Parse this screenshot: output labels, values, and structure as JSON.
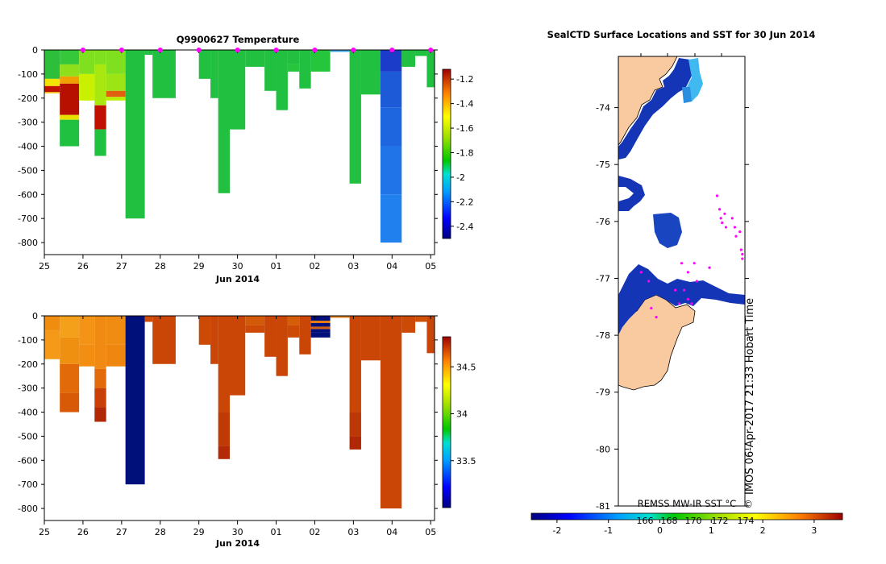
{
  "chart_data": [
    {
      "type": "heatmap",
      "title": "Q9900627  Temperature",
      "xlabel": "Jun 2014",
      "xticks": [
        "25",
        "26",
        "27",
        "28",
        "29",
        "30",
        "01",
        "02",
        "03",
        "04",
        "05"
      ],
      "xlim": [
        25,
        35.1
      ],
      "yticks": [
        "0",
        "-100",
        "-200",
        "-300",
        "-400",
        "-500",
        "-600",
        "-700",
        "-800"
      ],
      "ylim": [
        -850,
        0
      ],
      "colorbar": {
        "ticks": [
          "-1.2",
          "-1.4",
          "-1.6",
          "-1.8",
          "-2",
          "-2.2",
          "-2.4"
        ],
        "range": [
          -2.5,
          -1.12
        ]
      },
      "profiles": [
        {
          "t0": 25.0,
          "t1": 25.4,
          "depth": 180,
          "cells": [
            [
              0,
              120,
              "#2dbf3c"
            ],
            [
              120,
              150,
              "#f2e400"
            ],
            [
              150,
              175,
              "#c01000"
            ],
            [
              175,
              180,
              "#f2c800"
            ]
          ]
        },
        {
          "t0": 25.4,
          "t1": 25.9,
          "depth": 400,
          "cells": [
            [
              0,
              60,
              "#35c83a"
            ],
            [
              60,
              110,
              "#8fe01a"
            ],
            [
              110,
              140,
              "#f0a000"
            ],
            [
              140,
              270,
              "#b81000"
            ],
            [
              270,
              290,
              "#e8e000"
            ],
            [
              290,
              400,
              "#20c040"
            ]
          ]
        },
        {
          "t0": 25.9,
          "t1": 26.3,
          "depth": 210,
          "cells": [
            [
              0,
              100,
              "#7fe020"
            ],
            [
              100,
              210,
              "#c8f000"
            ]
          ]
        },
        {
          "t0": 26.3,
          "t1": 26.6,
          "depth": 440,
          "cells": [
            [
              0,
              60,
              "#7fe020"
            ],
            [
              60,
              230,
              "#a8e810"
            ],
            [
              230,
              330,
              "#c01000"
            ],
            [
              330,
              440,
              "#20c040"
            ]
          ]
        },
        {
          "t0": 26.6,
          "t1": 27.1,
          "depth": 210,
          "cells": [
            [
              0,
              100,
              "#7fe020"
            ],
            [
              100,
              170,
              "#9ce414"
            ],
            [
              170,
              195,
              "#e06010"
            ],
            [
              195,
              210,
              "#b8f000"
            ]
          ]
        },
        {
          "t0": 27.1,
          "t1": 27.6,
          "depth": 700,
          "cells": [
            [
              0,
              700,
              "#22c040"
            ]
          ]
        },
        {
          "t0": 27.6,
          "t1": 27.8,
          "depth": 20,
          "cells": [
            [
              0,
              20,
              "#22c040"
            ]
          ]
        },
        {
          "t0": 27.8,
          "t1": 28.4,
          "depth": 200,
          "cells": [
            [
              0,
              200,
              "#22c040"
            ]
          ]
        },
        {
          "t0": 29.0,
          "t1": 29.3,
          "depth": 120,
          "cells": [
            [
              0,
              120,
              "#22c040"
            ]
          ]
        },
        {
          "t0": 29.3,
          "t1": 29.5,
          "depth": 200,
          "cells": [
            [
              0,
              200,
              "#22c040"
            ]
          ]
        },
        {
          "t0": 29.5,
          "t1": 29.8,
          "depth": 595,
          "cells": [
            [
              0,
              595,
              "#22c040"
            ]
          ]
        },
        {
          "t0": 29.8,
          "t1": 30.2,
          "depth": 330,
          "cells": [
            [
              0,
              330,
              "#22c040"
            ]
          ]
        },
        {
          "t0": 30.2,
          "t1": 30.7,
          "depth": 70,
          "cells": [
            [
              0,
              70,
              "#22c040"
            ]
          ]
        },
        {
          "t0": 30.7,
          "t1": 31.0,
          "depth": 170,
          "cells": [
            [
              0,
              170,
              "#22c040"
            ]
          ]
        },
        {
          "t0": 31.0,
          "t1": 31.3,
          "depth": 250,
          "cells": [
            [
              0,
              250,
              "#22c040"
            ]
          ]
        },
        {
          "t0": 31.3,
          "t1": 31.6,
          "depth": 90,
          "cells": [
            [
              0,
              60,
              "#22c040"
            ],
            [
              60,
              90,
              "#26c63c"
            ]
          ]
        },
        {
          "t0": 31.6,
          "t1": 31.9,
          "depth": 160,
          "cells": [
            [
              0,
              160,
              "#22c040"
            ]
          ]
        },
        {
          "t0": 31.9,
          "t1": 32.4,
          "depth": 90,
          "cells": [
            [
              0,
              90,
              "#26c63c"
            ]
          ]
        },
        {
          "t0": 32.4,
          "t1": 32.9,
          "depth": 8,
          "cells": [
            [
              0,
              8,
              "#3aa8e8"
            ]
          ]
        },
        {
          "t0": 32.9,
          "t1": 33.2,
          "depth": 555,
          "cells": [
            [
              0,
              555,
              "#22c040"
            ]
          ]
        },
        {
          "t0": 33.2,
          "t1": 33.7,
          "depth": 185,
          "cells": [
            [
              0,
              185,
              "#22c040"
            ]
          ]
        },
        {
          "t0": 33.7,
          "t1": 34.25,
          "depth": 800,
          "cells": [
            [
              0,
              90,
              "#1a3cc8"
            ],
            [
              90,
              240,
              "#1c5ad8"
            ],
            [
              240,
              400,
              "#1e66e0"
            ],
            [
              400,
              600,
              "#2074e8"
            ],
            [
              600,
              800,
              "#2080ee"
            ]
          ]
        },
        {
          "t0": 34.25,
          "t1": 34.6,
          "depth": 70,
          "cells": [
            [
              0,
              70,
              "#22c040"
            ]
          ]
        },
        {
          "t0": 34.6,
          "t1": 34.9,
          "depth": 25,
          "cells": [
            [
              0,
              25,
              "#22c040"
            ]
          ]
        },
        {
          "t0": 34.9,
          "t1": 35.1,
          "depth": 155,
          "cells": [
            [
              0,
              155,
              "#22c040"
            ]
          ]
        }
      ],
      "markers": [
        26.0,
        27.0,
        28.0,
        29.0,
        30.0,
        31.0,
        32.0,
        33.0,
        34.0,
        35.0
      ]
    },
    {
      "type": "heatmap",
      "title": "",
      "xlabel": "Jun 2014",
      "xticks": [
        "25",
        "26",
        "27",
        "28",
        "29",
        "30",
        "01",
        "02",
        "03",
        "04",
        "05"
      ],
      "xlim": [
        25,
        35.1
      ],
      "yticks": [
        "0",
        "-100",
        "-200",
        "-300",
        "-400",
        "-500",
        "-600",
        "-700",
        "-800"
      ],
      "ylim": [
        -850,
        0
      ],
      "colorbar": {
        "ticks": [
          "34.5",
          "34",
          "33.5"
        ],
        "range": [
          33.0,
          34.82
        ]
      },
      "profiles": [
        {
          "t0": 25.0,
          "t1": 25.4,
          "depth": 180,
          "cells": [
            [
              0,
              60,
              "#f08c10"
            ],
            [
              60,
              180,
              "#f59a18"
            ]
          ]
        },
        {
          "t0": 25.4,
          "t1": 25.9,
          "depth": 400,
          "cells": [
            [
              0,
              90,
              "#f5a01a"
            ],
            [
              90,
              200,
              "#f09010"
            ],
            [
              200,
              320,
              "#e36a08"
            ],
            [
              320,
              400,
              "#d85a06"
            ]
          ]
        },
        {
          "t0": 25.9,
          "t1": 26.3,
          "depth": 210,
          "cells": [
            [
              0,
              120,
              "#f39416"
            ],
            [
              120,
              210,
              "#f28e12"
            ]
          ]
        },
        {
          "t0": 26.3,
          "t1": 26.6,
          "depth": 440,
          "cells": [
            [
              0,
              220,
              "#f08a12"
            ],
            [
              220,
              300,
              "#e26a0a"
            ],
            [
              300,
              380,
              "#c84008"
            ],
            [
              380,
              440,
              "#b02806"
            ]
          ]
        },
        {
          "t0": 26.6,
          "t1": 27.1,
          "depth": 210,
          "cells": [
            [
              0,
              120,
              "#f08c12"
            ],
            [
              120,
              210,
              "#ee8610"
            ]
          ]
        },
        {
          "t0": 27.1,
          "t1": 27.6,
          "depth": 700,
          "cells": [
            [
              0,
              700,
              "#00107a"
            ]
          ]
        },
        {
          "t0": 27.6,
          "t1": 27.8,
          "depth": 25,
          "cells": [
            [
              0,
              25,
              "#cf4c08"
            ]
          ]
        },
        {
          "t0": 27.8,
          "t1": 28.4,
          "depth": 200,
          "cells": [
            [
              0,
              200,
              "#c94606"
            ]
          ]
        },
        {
          "t0": 29.0,
          "t1": 29.3,
          "depth": 120,
          "cells": [
            [
              0,
              120,
              "#cc4a06"
            ]
          ]
        },
        {
          "t0": 29.3,
          "t1": 29.5,
          "depth": 200,
          "cells": [
            [
              0,
              200,
              "#c94606"
            ]
          ]
        },
        {
          "t0": 29.5,
          "t1": 29.8,
          "depth": 595,
          "cells": [
            [
              0,
              400,
              "#c94606"
            ],
            [
              400,
              540,
              "#c03a06"
            ],
            [
              540,
              595,
              "#b42a06"
            ]
          ]
        },
        {
          "t0": 29.8,
          "t1": 30.2,
          "depth": 330,
          "cells": [
            [
              0,
              330,
              "#c94606"
            ]
          ]
        },
        {
          "t0": 30.2,
          "t1": 30.7,
          "depth": 70,
          "cells": [
            [
              0,
              40,
              "#d35a08"
            ],
            [
              40,
              70,
              "#cc4a06"
            ]
          ]
        },
        {
          "t0": 30.7,
          "t1": 31.0,
          "depth": 170,
          "cells": [
            [
              0,
              170,
              "#c94606"
            ]
          ]
        },
        {
          "t0": 31.0,
          "t1": 31.3,
          "depth": 250,
          "cells": [
            [
              0,
              250,
              "#c94606"
            ]
          ]
        },
        {
          "t0": 31.3,
          "t1": 31.6,
          "depth": 90,
          "cells": [
            [
              0,
              40,
              "#d65e08"
            ],
            [
              40,
              90,
              "#cc4a06"
            ]
          ]
        },
        {
          "t0": 31.6,
          "t1": 31.9,
          "depth": 160,
          "cells": [
            [
              0,
              160,
              "#c94606"
            ]
          ]
        },
        {
          "t0": 31.9,
          "t1": 32.4,
          "depth": 90,
          "cells": [
            [
              0,
              20,
              "#00107a"
            ],
            [
              20,
              30,
              "#e87a10"
            ],
            [
              30,
              45,
              "#00107a"
            ],
            [
              45,
              55,
              "#d26010"
            ],
            [
              55,
              70,
              "#00107a"
            ],
            [
              70,
              90,
              "#00107a"
            ]
          ]
        },
        {
          "t0": 32.4,
          "t1": 32.9,
          "depth": 8,
          "cells": [
            [
              0,
              8,
              "#e07a12"
            ]
          ]
        },
        {
          "t0": 32.9,
          "t1": 33.2,
          "depth": 555,
          "cells": [
            [
              0,
              400,
              "#c94606"
            ],
            [
              400,
              500,
              "#bc3806"
            ],
            [
              500,
              555,
              "#b02806"
            ]
          ]
        },
        {
          "t0": 33.2,
          "t1": 33.7,
          "depth": 185,
          "cells": [
            [
              0,
              185,
              "#c94606"
            ]
          ]
        },
        {
          "t0": 33.7,
          "t1": 34.25,
          "depth": 800,
          "cells": [
            [
              0,
              800,
              "#c94606"
            ]
          ]
        },
        {
          "t0": 34.25,
          "t1": 34.6,
          "depth": 70,
          "cells": [
            [
              0,
              70,
              "#cc4a06"
            ]
          ]
        },
        {
          "t0": 34.6,
          "t1": 34.9,
          "depth": 25,
          "cells": [
            [
              0,
              25,
              "#d05008"
            ]
          ]
        },
        {
          "t0": 34.9,
          "t1": 35.1,
          "depth": 155,
          "cells": [
            [
              0,
              155,
              "#c94606"
            ]
          ]
        }
      ],
      "markers": []
    },
    {
      "type": "map",
      "title": "SealCTD Surface Locations and SST for 30 Jun 2014",
      "yticks": [
        "-74",
        "-75",
        "-76",
        "-77",
        "-78",
        "-79",
        "-80",
        "-81"
      ],
      "ylim": [
        -81,
        -73.1
      ],
      "colorbar": {
        "label": "REMSS MW-IR SST °C",
        "ticks": [
          "-2",
          "-1",
          "0",
          "1",
          "2",
          "3"
        ],
        "range": [
          -2.5,
          3.55
        ],
        "overlay_ticks": [
          "166",
          "168",
          "170",
          "172",
          "174"
        ]
      },
      "watermark": "IMOS 06-Apr-2017 21:33 Hobart Time",
      "copyright_symbol": "©",
      "colors": {
        "land": "#f9c9a0",
        "ice_sst": "#1435b5",
        "warm_sst": "#40b8f0",
        "positions": "#ff00ff"
      }
    }
  ]
}
